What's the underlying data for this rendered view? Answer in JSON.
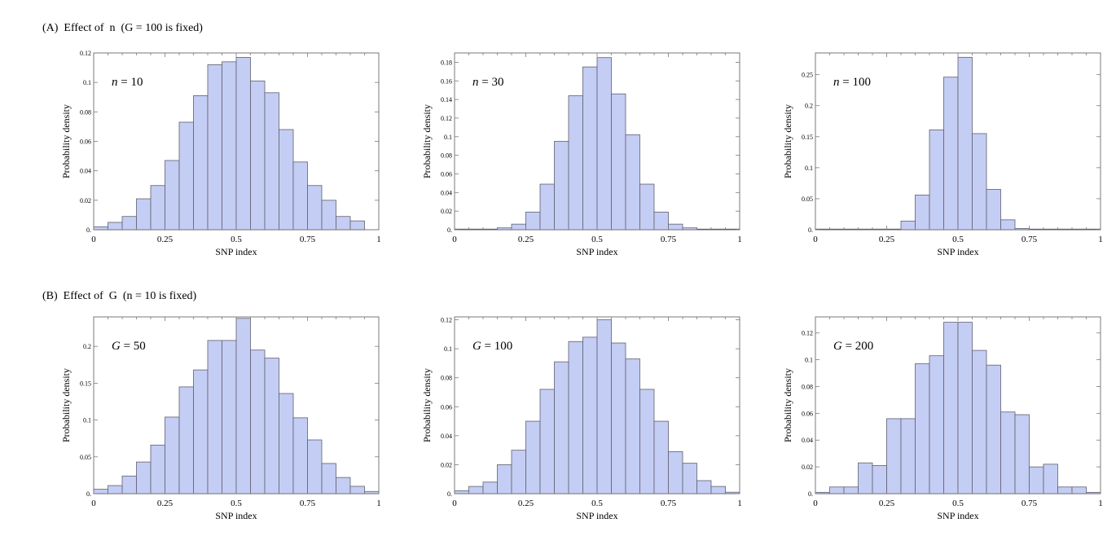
{
  "figure": {
    "section_a_title": "(A)  Effect of  n  (G = 100 is fixed)",
    "section_b_title": "(B)  Effect of  G  (n = 10 is fixed)"
  },
  "chart_data": [
    {
      "type": "bar",
      "panel": "A1",
      "title": "",
      "annotation": "n = 10",
      "xlabel": "SNP index",
      "ylabel": "Probability density",
      "xlim": [
        0,
        1
      ],
      "ylim": [
        0,
        0.12
      ],
      "xticks": [
        0,
        0.25,
        0.5,
        0.75,
        1
      ],
      "xtick_labels": [
        "0",
        "0.25",
        "0.5",
        "0.75",
        "1"
      ],
      "yticks": [
        0,
        0.02,
        0.04,
        0.06,
        0.08,
        0.1,
        0.12
      ],
      "ytick_labels": [
        "0.",
        "0.02",
        "0.04",
        "0.06",
        "0.08",
        "0.1",
        "0.12"
      ],
      "bin_width": 0.05,
      "bin_starts": [
        0,
        0.05,
        0.1,
        0.15,
        0.2,
        0.25,
        0.3,
        0.35,
        0.4,
        0.45,
        0.5,
        0.55,
        0.6,
        0.65,
        0.7,
        0.75,
        0.8,
        0.85,
        0.9
      ],
      "values": [
        0.002,
        0.005,
        0.009,
        0.021,
        0.03,
        0.047,
        0.073,
        0.091,
        0.112,
        0.114,
        0.117,
        0.101,
        0.093,
        0.068,
        0.046,
        0.03,
        0.02,
        0.009,
        0.006
      ]
    },
    {
      "type": "bar",
      "panel": "A2",
      "title": "",
      "annotation": "n = 30",
      "xlabel": "SNP index",
      "ylabel": "Probability density",
      "xlim": [
        0,
        1
      ],
      "ylim": [
        0,
        0.19
      ],
      "xticks": [
        0,
        0.25,
        0.5,
        0.75,
        1
      ],
      "xtick_labels": [
        "0",
        "0.25",
        "0.5",
        "0.75",
        "1"
      ],
      "yticks": [
        0,
        0.02,
        0.04,
        0.06,
        0.08,
        0.1,
        0.12,
        0.14,
        0.16,
        0.18
      ],
      "ytick_labels": [
        "0.",
        "0.02",
        "0.04",
        "0.06",
        "0.08",
        "0.1",
        "0.12",
        "0.14",
        "0.16",
        "0.18"
      ],
      "bin_width": 0.05,
      "bin_starts": [
        0,
        0.05,
        0.1,
        0.15,
        0.2,
        0.25,
        0.3,
        0.35,
        0.4,
        0.45,
        0.5,
        0.55,
        0.6,
        0.65,
        0.7,
        0.75,
        0.8,
        0.85,
        0.9,
        0.95
      ],
      "values": [
        0.0002,
        0.0003,
        0.0005,
        0.002,
        0.006,
        0.019,
        0.049,
        0.095,
        0.144,
        0.175,
        0.185,
        0.146,
        0.102,
        0.049,
        0.019,
        0.006,
        0.002,
        0.0005,
        0.0003,
        0.0002
      ]
    },
    {
      "type": "bar",
      "panel": "A3",
      "title": "",
      "annotation": "n = 100",
      "xlabel": "SNP index",
      "ylabel": "Probability density",
      "xlim": [
        0,
        1
      ],
      "ylim": [
        0,
        0.285
      ],
      "xticks": [
        0,
        0.25,
        0.5,
        0.75,
        1
      ],
      "xtick_labels": [
        "0",
        "0.25",
        "0.5",
        "0.75",
        "1"
      ],
      "yticks": [
        0,
        0.05,
        0.1,
        0.15,
        0.2,
        0.25
      ],
      "ytick_labels": [
        "0.",
        "0.05",
        "0.1",
        "0.15",
        "0.2",
        "0.25"
      ],
      "bin_width": 0.05,
      "bin_starts": [
        0,
        0.05,
        0.1,
        0.15,
        0.2,
        0.25,
        0.3,
        0.35,
        0.4,
        0.45,
        0.5,
        0.55,
        0.6,
        0.65,
        0.7,
        0.75,
        0.8,
        0.85,
        0.9,
        0.95
      ],
      "values": [
        0.0002,
        0.0002,
        0.0002,
        0.0002,
        0.0002,
        0.001,
        0.014,
        0.056,
        0.161,
        0.246,
        0.278,
        0.155,
        0.065,
        0.016,
        0.002,
        0.0002,
        0.0002,
        0.0002,
        0.0002,
        0.0002
      ]
    },
    {
      "type": "bar",
      "panel": "B1",
      "title": "",
      "annotation": "G = 50",
      "xlabel": "SNP index",
      "ylabel": "Probability density",
      "xlim": [
        0,
        1
      ],
      "ylim": [
        0,
        0.24
      ],
      "xticks": [
        0,
        0.25,
        0.5,
        0.75,
        1
      ],
      "xtick_labels": [
        "0",
        "0.25",
        "0.5",
        "0.75",
        "1"
      ],
      "yticks": [
        0,
        0.05,
        0.1,
        0.15,
        0.2
      ],
      "ytick_labels": [
        "0.",
        "0.05",
        "0.1",
        "0.15",
        "0.2"
      ],
      "bin_width": 0.05,
      "bin_starts": [
        0,
        0.05,
        0.1,
        0.15,
        0.2,
        0.25,
        0.3,
        0.35,
        0.4,
        0.45,
        0.5,
        0.55,
        0.6,
        0.65,
        0.7,
        0.75,
        0.8,
        0.85,
        0.9,
        0.95
      ],
      "values": [
        0.006,
        0.011,
        0.024,
        0.043,
        0.066,
        0.104,
        0.145,
        0.168,
        0.208,
        0.208,
        0.238,
        0.195,
        0.184,
        0.136,
        0.103,
        0.073,
        0.041,
        0.022,
        0.01,
        0.003
      ]
    },
    {
      "type": "bar",
      "panel": "B2",
      "title": "",
      "annotation": "G = 100",
      "xlabel": "SNP index",
      "ylabel": "Probability density",
      "xlim": [
        0,
        1
      ],
      "ylim": [
        0,
        0.122
      ],
      "xticks": [
        0,
        0.25,
        0.5,
        0.75,
        1
      ],
      "xtick_labels": [
        "0",
        "0.25",
        "0.5",
        "0.75",
        "1"
      ],
      "yticks": [
        0,
        0.02,
        0.04,
        0.06,
        0.08,
        0.1,
        0.12
      ],
      "ytick_labels": [
        "0.",
        "0.02",
        "0.04",
        "0.06",
        "0.08",
        "0.1",
        "0.12"
      ],
      "bin_width": 0.05,
      "bin_starts": [
        0,
        0.05,
        0.1,
        0.15,
        0.2,
        0.25,
        0.3,
        0.35,
        0.4,
        0.45,
        0.5,
        0.55,
        0.6,
        0.65,
        0.7,
        0.75,
        0.8,
        0.85,
        0.9,
        0.95
      ],
      "values": [
        0.002,
        0.005,
        0.008,
        0.02,
        0.03,
        0.05,
        0.072,
        0.091,
        0.105,
        0.108,
        0.12,
        0.104,
        0.093,
        0.072,
        0.05,
        0.029,
        0.021,
        0.009,
        0.005,
        0.001
      ]
    },
    {
      "type": "bar",
      "panel": "B3",
      "title": "",
      "annotation": "G = 200",
      "xlabel": "SNP index",
      "ylabel": "Probability density",
      "xlim": [
        0,
        1
      ],
      "ylim": [
        0,
        0.132
      ],
      "xticks": [
        0,
        0.25,
        0.5,
        0.75,
        1
      ],
      "xtick_labels": [
        "0",
        "0.25",
        "0.5",
        "0.75",
        "1"
      ],
      "yticks": [
        0,
        0.02,
        0.04,
        0.06,
        0.08,
        0.1,
        0.12
      ],
      "ytick_labels": [
        "0.",
        "0.02",
        "0.04",
        "0.06",
        "0.08",
        "0.1",
        "0.12"
      ],
      "bin_width": 0.05,
      "bin_starts": [
        0,
        0.05,
        0.1,
        0.15,
        0.2,
        0.25,
        0.3,
        0.35,
        0.4,
        0.45,
        0.5,
        0.55,
        0.6,
        0.65,
        0.7,
        0.75,
        0.8,
        0.85,
        0.9,
        0.95
      ],
      "values": [
        0.001,
        0.005,
        0.005,
        0.023,
        0.021,
        0.056,
        0.056,
        0.097,
        0.103,
        0.128,
        0.128,
        0.107,
        0.096,
        0.061,
        0.059,
        0.02,
        0.022,
        0.005,
        0.005,
        0.001
      ]
    }
  ]
}
